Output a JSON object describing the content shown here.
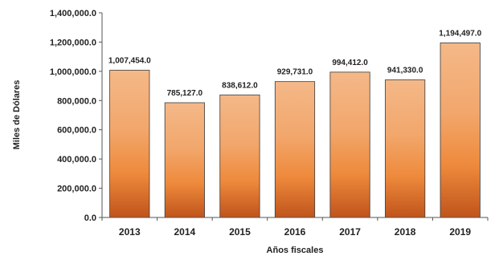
{
  "chart_data": {
    "type": "bar",
    "title": "",
    "xlabel": "Años fiscales",
    "ylabel": "Miles de Dólares",
    "categories": [
      "2013",
      "2014",
      "2015",
      "2016",
      "2017",
      "2018",
      "2019"
    ],
    "values": [
      1007454.0,
      785127.0,
      838612.0,
      929731.0,
      994412.0,
      941330.0,
      1194497.0
    ],
    "data_labels": [
      "1,007,454.0",
      "785,127.0",
      "838,612.0",
      "929,731.0",
      "994,412.0",
      "941,330.0",
      "1,194,497.0"
    ],
    "ylim": [
      0,
      1400000
    ],
    "yticks": [
      0,
      200000,
      400000,
      600000,
      800000,
      1000000,
      1200000,
      1400000
    ],
    "ytick_labels": [
      "0.0",
      "200,000.0",
      "400,000.0",
      "600,000.0",
      "800,000.0",
      "1,000,000.0",
      "1,200,000.0",
      "1,400,000.0"
    ],
    "grid": false,
    "legend": "none",
    "colors": {
      "bar_top": "#f4b888",
      "bar_mid": "#ee8a3c",
      "bar_bottom": "#c0541c",
      "bar_edge": "#3a3a3a",
      "axis": "#555555"
    }
  }
}
